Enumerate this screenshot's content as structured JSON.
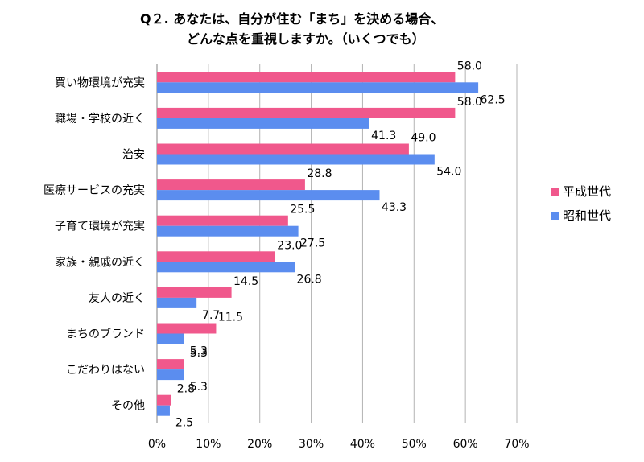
{
  "chart_data": {
    "type": "bar",
    "orientation": "horizontal",
    "title": [
      "Q２. あなたは、自分が住む「まち」を決める場合、",
      "どんな点を重視しますか。（いくつでも）"
    ],
    "categories": [
      "買い物環境が充実",
      "職場・学校の近く",
      "治安",
      "医療サービスの充実",
      "子育て環境が充実",
      "家族・親戚の近く",
      "友人の近く",
      "まちのブランド",
      "こだわりはない",
      "その他"
    ],
    "series": [
      {
        "name": "平成世代",
        "color": "#F0588C",
        "values": [
          58.0,
          58.0,
          49.0,
          28.8,
          25.5,
          23.0,
          14.5,
          11.5,
          5.3,
          2.8
        ]
      },
      {
        "name": "昭和世代",
        "color": "#5B8DEF",
        "values": [
          62.5,
          41.3,
          54.0,
          43.3,
          27.5,
          26.8,
          7.7,
          5.3,
          5.3,
          2.5
        ]
      }
    ],
    "x_ticks": [
      "0%",
      "10%",
      "20%",
      "30%",
      "40%",
      "50%",
      "60%",
      "70%"
    ],
    "xlim": [
      0,
      70
    ],
    "grid": true,
    "legend_position": "right"
  }
}
